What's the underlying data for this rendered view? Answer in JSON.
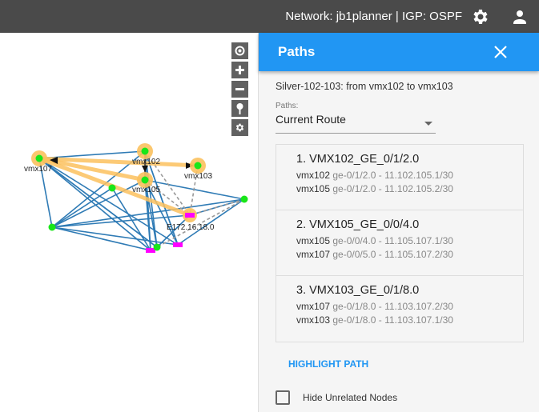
{
  "topbar": {
    "title": "Network: jb1planner | IGP: OSPF",
    "icons": [
      "gear-icon",
      "account-icon"
    ]
  },
  "map": {
    "controls": [
      "center-icon",
      "zoom-in-icon",
      "zoom-out-icon",
      "pin-icon",
      "settings-icon"
    ],
    "nodes": [
      {
        "label": "vmx107"
      },
      {
        "label": "vmx102"
      },
      {
        "label": "vmx103"
      },
      {
        "label": "vmx105"
      },
      {
        "label": ""
      },
      {
        "label": ""
      },
      {
        "label": ""
      },
      {
        "label": ""
      }
    ],
    "segment_label": "E172.16.18.0",
    "colors": {
      "link": "#2f7bb5",
      "node": "#19e619",
      "highlight": "#fbc15e",
      "segment": "#ff00ff",
      "dashed": "#999999"
    }
  },
  "panel": {
    "title": "Paths",
    "subtitle": "Silver-102-103: from vmx102 to vmx103",
    "paths_label": "Paths:",
    "paths_value": "Current Route",
    "hops": [
      {
        "name": "1. VMX102_GE_0/1/2.0",
        "rows": [
          {
            "node": "vmx102",
            "info": "ge-0/1/2.0 - 11.102.105.1/30"
          },
          {
            "node": "vmx105",
            "info": "ge-0/1/2.0 - 11.102.105.2/30"
          }
        ]
      },
      {
        "name": "2. VMX105_GE_0/0/4.0",
        "rows": [
          {
            "node": "vmx105",
            "info": "ge-0/0/4.0 - 11.105.107.1/30"
          },
          {
            "node": "vmx107",
            "info": "ge-0/0/5.0 - 11.105.107.2/30"
          }
        ]
      },
      {
        "name": "3. VMX103_GE_0/1/8.0",
        "rows": [
          {
            "node": "vmx107",
            "info": "ge-0/1/8.0 - 11.103.107.2/30"
          },
          {
            "node": "vmx103",
            "info": "ge-0/1/8.0 - 11.103.107.1/30"
          }
        ]
      }
    ],
    "highlight_label": "HIGHLIGHT PATH",
    "hide_label": "Hide Unrelated Nodes",
    "hide_checked": false,
    "accent": "#2196f3"
  }
}
